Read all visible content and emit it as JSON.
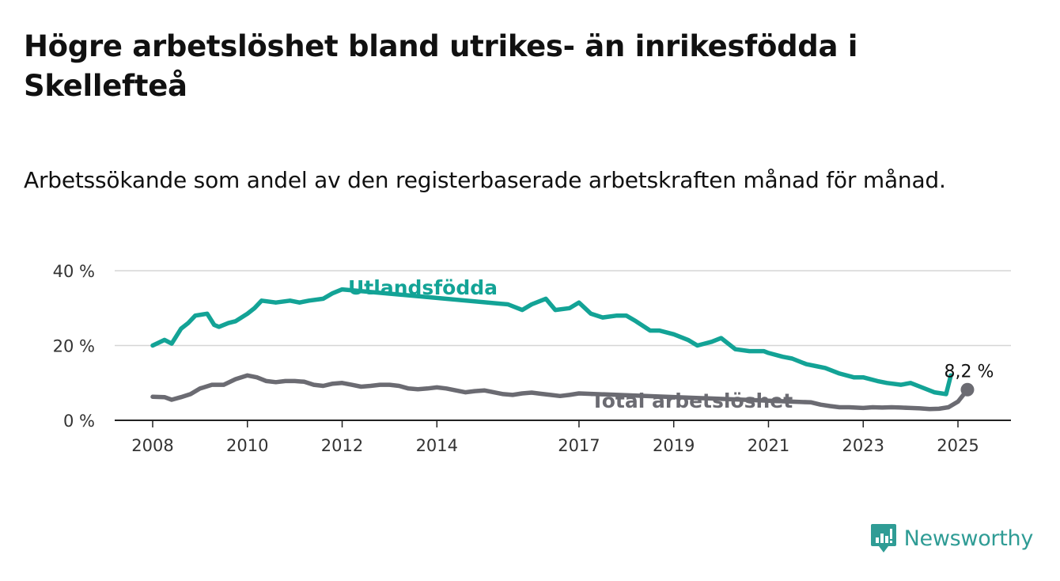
{
  "title": "Högre arbetslöshet bland utrikes- än inrikesfödda i Skellefteå",
  "subtitle": "Arbetssökande som andel av den registerbaserade arbetskraften månad för månad.",
  "brand": {
    "name": "Newsworthy",
    "color": "#2f9c95"
  },
  "chart_data": {
    "type": "line",
    "x_unit": "year (decimal)",
    "ylim": [
      0,
      40
    ],
    "xlim": [
      2007.2,
      2026.1
    ],
    "y_ticks": [
      0,
      20,
      40
    ],
    "y_tick_labels": [
      "0 %",
      "20 %",
      "40 %"
    ],
    "x_ticks": [
      2008,
      2010,
      2012,
      2014,
      2017,
      2019,
      2021,
      2023,
      2025
    ],
    "x_tick_labels": [
      "2008",
      "2010",
      "2012",
      "2014",
      "2017",
      "2019",
      "2021",
      "2023",
      "2025"
    ],
    "grid": true,
    "series": [
      {
        "name": "Utlandsfödda",
        "color": "#13a396",
        "x": [
          2008.0,
          2008.25,
          2008.4,
          2008.6,
          2008.75,
          2008.9,
          2009.15,
          2009.3,
          2009.4,
          2009.6,
          2009.75,
          2010.0,
          2010.15,
          2010.3,
          2010.6,
          2010.9,
          2011.1,
          2011.3,
          2011.6,
          2011.8,
          2012.0,
          2015.5,
          2015.8,
          2016.0,
          2016.3,
          2016.5,
          2016.8,
          2017.0,
          2017.25,
          2017.5,
          2017.8,
          2018.0,
          2018.2,
          2018.5,
          2018.7,
          2019.0,
          2019.3,
          2019.5,
          2019.8,
          2020.0,
          2020.3,
          2020.6,
          2020.9,
          2021.0,
          2021.3,
          2021.5,
          2021.8,
          2022.0,
          2022.2,
          2022.5,
          2022.8,
          2023.0,
          2023.3,
          2023.5,
          2023.8,
          2024.0,
          2024.2,
          2024.5,
          2024.75,
          2024.85
        ],
        "y": [
          20,
          21.5,
          20.5,
          24.5,
          26,
          28,
          28.5,
          25.5,
          25,
          26,
          26.5,
          28.5,
          30,
          32,
          31.5,
          32,
          31.5,
          32,
          32.5,
          34,
          35,
          31,
          29.5,
          31,
          32.5,
          29.5,
          30,
          31.5,
          28.5,
          27.5,
          28,
          28,
          26.5,
          24,
          24,
          23,
          21.5,
          20,
          21,
          22,
          19,
          18.5,
          18.5,
          18,
          17,
          16.5,
          15,
          14.5,
          14,
          12.5,
          11.5,
          11.5,
          10.5,
          10,
          9.5,
          10,
          9,
          7.5,
          7,
          12
        ]
      },
      {
        "name": "Total arbetslöshet",
        "color": "#6b6b72",
        "x": [
          2008.0,
          2008.25,
          2008.4,
          2008.6,
          2008.8,
          2009.0,
          2009.25,
          2009.5,
          2009.75,
          2010.0,
          2010.2,
          2010.4,
          2010.6,
          2010.8,
          2011.0,
          2011.2,
          2011.4,
          2011.6,
          2011.8,
          2012.0,
          2012.2,
          2012.4,
          2012.6,
          2012.8,
          2013.0,
          2013.2,
          2013.4,
          2013.6,
          2013.8,
          2014.0,
          2014.2,
          2014.4,
          2014.6,
          2014.8,
          2015.0,
          2015.2,
          2015.4,
          2015.6,
          2015.8,
          2016.0,
          2016.2,
          2016.4,
          2016.6,
          2016.8,
          2017.0,
          2021.9,
          2022.1,
          2022.3,
          2022.5,
          2022.7,
          2023.0,
          2023.2,
          2023.4,
          2023.6,
          2023.8,
          2024.0,
          2024.2,
          2024.4,
          2024.6,
          2024.8,
          2025.0,
          2025.2
        ],
        "y": [
          6.3,
          6.2,
          5.5,
          6.2,
          7,
          8.5,
          9.5,
          9.5,
          11,
          12,
          11.5,
          10.5,
          10.2,
          10.5,
          10.5,
          10.3,
          9.5,
          9.2,
          9.8,
          10,
          9.5,
          9,
          9.2,
          9.5,
          9.5,
          9.2,
          8.5,
          8.3,
          8.5,
          8.8,
          8.5,
          8,
          7.5,
          7.8,
          8,
          7.5,
          7,
          6.8,
          7.2,
          7.4,
          7.1,
          6.8,
          6.5,
          6.8,
          7.2,
          4.8,
          4.2,
          3.8,
          3.5,
          3.5,
          3.3,
          3.5,
          3.4,
          3.5,
          3.4,
          3.3,
          3.2,
          3,
          3.1,
          3.5,
          5,
          8.2
        ]
      }
    ],
    "end_label": {
      "series": "Total arbetslöshet",
      "x": 2025.2,
      "y": 8.2,
      "text": "8,2 %"
    }
  }
}
